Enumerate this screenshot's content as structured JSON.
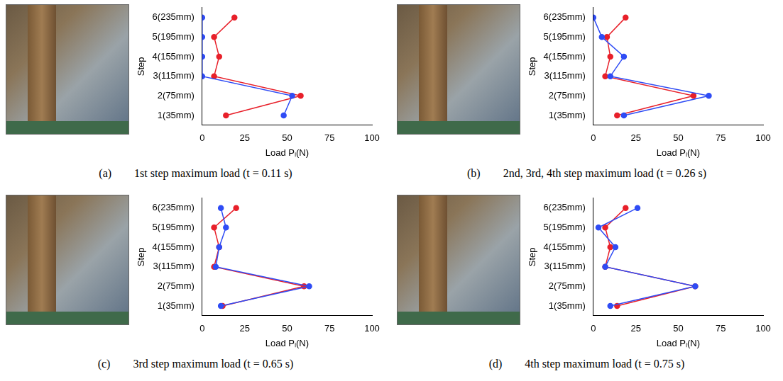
{
  "chart_data": [
    {
      "type": "line",
      "orientation": "horizontal",
      "title": "(a)  1st step maximum load (t = 0.11 s)",
      "x_label": "Load Pₗ(N)",
      "y_label": "Step",
      "categories": [
        "1(35mm)",
        "2(75mm)",
        "3(115mm)",
        "4(155mm)",
        "5(195mm)",
        "6(235mm)"
      ],
      "xlim": [
        0,
        100
      ],
      "xticks": [
        0,
        25,
        50,
        75,
        100
      ],
      "grid": false,
      "series": [
        {
          "color": "#2f4cf5",
          "marker": "circle",
          "line_style": "solid",
          "values": [
            48,
            53,
            0,
            0,
            0,
            0
          ]
        },
        {
          "color": "#e8202a",
          "marker": "circle",
          "line_style": "solid",
          "values": [
            14,
            58,
            7,
            10,
            7,
            19
          ]
        }
      ]
    },
    {
      "type": "line",
      "orientation": "horizontal",
      "title": "(b)  2nd, 3rd, 4th step maximum load (t = 0.26 s)",
      "x_label": "Load Pₗ(N)",
      "y_label": "Step",
      "categories": [
        "1(35mm)",
        "2(75mm)",
        "3(115mm)",
        "4(155mm)",
        "5(195mm)",
        "6(235mm)"
      ],
      "xlim": [
        0,
        100
      ],
      "xticks": [
        0,
        25,
        50,
        75,
        100
      ],
      "grid": false,
      "series": [
        {
          "color": "#2f4cf5",
          "marker": "circle",
          "line_style": "solid",
          "values": [
            18,
            68,
            10,
            18,
            5,
            0
          ]
        },
        {
          "color": "#e8202a",
          "marker": "circle",
          "line_style": "solid",
          "values": [
            14,
            59,
            7,
            10,
            8,
            19
          ]
        }
      ]
    },
    {
      "type": "line",
      "orientation": "horizontal",
      "title": "(c)  3rd step maximum load (t = 0.65 s)",
      "x_label": "Load Pₗ(N)",
      "y_label": "Step",
      "categories": [
        "1(35mm)",
        "2(75mm)",
        "3(115mm)",
        "4(155mm)",
        "5(195mm)",
        "6(235mm)"
      ],
      "xlim": [
        0,
        100
      ],
      "xticks": [
        0,
        25,
        50,
        75,
        100
      ],
      "grid": false,
      "series": [
        {
          "color": "#2f4cf5",
          "marker": "circle",
          "line_style": "solid",
          "values": [
            11,
            63,
            8,
            10,
            14,
            11
          ]
        },
        {
          "color": "#e8202a",
          "marker": "circle",
          "line_style": "solid",
          "values": [
            12,
            60,
            7,
            10,
            7,
            20
          ]
        }
      ]
    },
    {
      "type": "line",
      "orientation": "horizontal",
      "title": "(d)  4th step maximum load (t = 0.75 s)",
      "x_label": "Load Pₗ(N)",
      "y_label": "Step",
      "categories": [
        "1(35mm)",
        "2(75mm)",
        "3(115mm)",
        "4(155mm)",
        "5(195mm)",
        "6(235mm)"
      ],
      "xlim": [
        0,
        100
      ],
      "xticks": [
        0,
        25,
        50,
        75,
        100
      ],
      "grid": false,
      "series": [
        {
          "color": "#2f4cf5",
          "marker": "circle",
          "line_style": "solid",
          "values": [
            10,
            60,
            7,
            13,
            3,
            26
          ]
        },
        {
          "color": "#e8202a",
          "marker": "circle",
          "line_style": "solid",
          "values": [
            14,
            60,
            7,
            10,
            7,
            19
          ]
        }
      ]
    }
  ]
}
